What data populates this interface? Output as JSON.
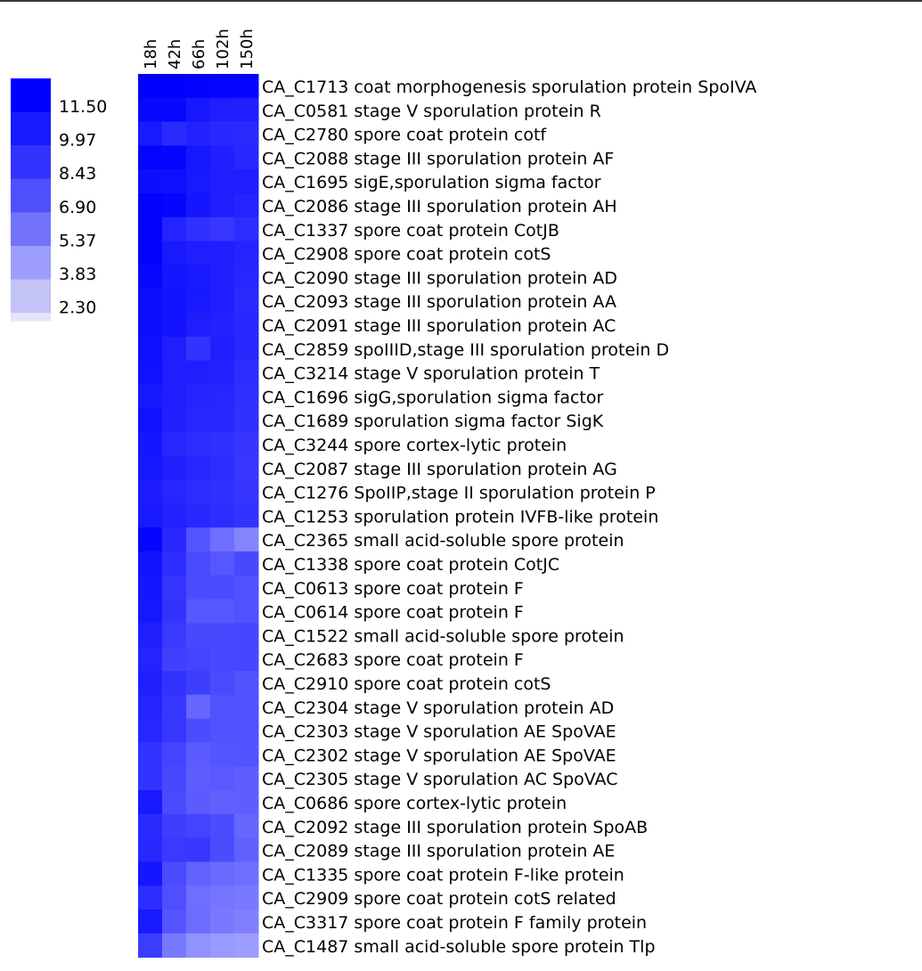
{
  "chart_data": {
    "type": "heatmap",
    "title": "",
    "columns": [
      "18h",
      "42h",
      "66h",
      "102h",
      "150h"
    ],
    "rows": [
      "CA_C1713 coat morphogenesis sporulation protein SpoIVA",
      "CA_C0581 stage V sporulation protein R",
      "CA_C2780 spore coat protein cotf",
      "CA_C2088 stage III sporulation protein AF",
      "CA_C1695 sigE,sporulation sigma factor",
      "CA_C2086 stage III sporulation protein AH",
      "CA_C1337 spore coat protein CotJB",
      "CA_C2908 spore coat protein cotS",
      "CA_C2090 stage III sporulation protein AD",
      "CA_C2093 stage III sporulation protein AA",
      "CA_C2091 stage III sporulation protein AC",
      "CA_C2859 spoIIID,stage III sporulation protein D",
      "CA_C3214 stage V sporulation protein T",
      "CA_C1696 sigG,sporulation sigma factor",
      "CA_C1689 sporulation sigma factor SigK",
      "CA_C3244 spore cortex-lytic protein",
      "CA_C2087 stage III sporulation protein AG",
      "CA_C1276 SpoIIP,stage II sporulation protein P",
      "CA_C1253 sporulation protein IVFB-like protein",
      "CA_C2365 small acid-soluble spore protein",
      "CA_C1338 spore coat protein CotJC",
      "CA_C0613 spore coat protein F",
      "CA_C0614 spore coat protein F",
      "CA_C1522 small acid-soluble spore protein",
      "CA_C2683 spore coat protein F",
      "CA_C2910 spore coat protein cotS",
      "CA_C2304 stage V sporulation protein AD",
      "CA_C2303 stage V sporulation AE SpoVAE",
      "CA_C2302 stage V sporulation AE SpoVAE",
      "CA_C2305 stage V sporulation AC SpoVAC",
      "CA_C0686 spore cortex-lytic protein",
      "CA_C2092 stage III sporulation protein SpoAB",
      "CA_C2089 stage III sporulation protein AE",
      "CA_C1335 spore coat protein F-like protein",
      "CA_C2909 spore coat protein cotS related",
      "CA_C3317 spore coat protein F family protein",
      "CA_C1487 small acid-soluble spore protein Tlp"
    ],
    "values": [
      [
        12.0,
        12.0,
        11.9,
        11.8,
        11.8
      ],
      [
        11.6,
        11.6,
        10.9,
        10.6,
        10.5
      ],
      [
        10.8,
        10.0,
        10.4,
        10.1,
        10.0
      ],
      [
        11.8,
        11.7,
        10.9,
        10.5,
        10.1
      ],
      [
        11.4,
        11.3,
        10.8,
        10.6,
        10.6
      ],
      [
        11.9,
        11.7,
        11.0,
        10.6,
        10.3
      ],
      [
        11.9,
        10.3,
        9.7,
        9.4,
        9.9
      ],
      [
        11.9,
        10.8,
        10.6,
        10.6,
        10.3
      ],
      [
        11.6,
        11.0,
        10.8,
        10.5,
        10.2
      ],
      [
        11.4,
        11.1,
        10.8,
        10.6,
        10.0
      ],
      [
        11.4,
        11.1,
        10.6,
        10.4,
        10.1
      ],
      [
        11.3,
        10.6,
        9.6,
        10.5,
        10.1
      ],
      [
        11.2,
        10.6,
        10.5,
        10.4,
        9.9
      ],
      [
        10.9,
        10.6,
        10.3,
        10.2,
        9.8
      ],
      [
        11.2,
        10.5,
        10.2,
        10.1,
        9.7
      ],
      [
        11.0,
        10.2,
        9.9,
        9.7,
        9.5
      ],
      [
        10.9,
        10.5,
        10.2,
        9.9,
        9.4
      ],
      [
        10.7,
        10.2,
        9.9,
        9.7,
        9.5
      ],
      [
        10.8,
        10.4,
        10.1,
        9.9,
        9.6
      ],
      [
        11.7,
        10.1,
        8.0,
        6.8,
        5.8
      ],
      [
        11.1,
        9.9,
        8.5,
        7.9,
        8.6
      ],
      [
        11.0,
        9.5,
        8.4,
        8.5,
        8.2
      ],
      [
        10.9,
        9.6,
        7.9,
        7.9,
        8.2
      ],
      [
        10.5,
        9.3,
        8.6,
        8.6,
        8.7
      ],
      [
        10.3,
        9.0,
        8.8,
        8.6,
        8.7
      ],
      [
        10.5,
        9.6,
        9.1,
        8.5,
        8.1
      ],
      [
        10.3,
        9.4,
        7.2,
        8.2,
        8.2
      ],
      [
        10.2,
        9.4,
        8.4,
        8.2,
        8.2
      ],
      [
        9.6,
        8.8,
        7.7,
        8.0,
        8.1
      ],
      [
        9.6,
        8.6,
        7.6,
        7.8,
        7.6
      ],
      [
        10.8,
        8.5,
        7.7,
        7.5,
        7.6
      ],
      [
        10.0,
        9.1,
        8.8,
        8.4,
        7.2
      ],
      [
        10.1,
        9.3,
        9.4,
        8.4,
        7.5
      ],
      [
        11.0,
        8.5,
        7.4,
        7.0,
        6.8
      ],
      [
        9.9,
        8.3,
        6.8,
        6.5,
        6.3
      ],
      [
        10.8,
        8.0,
        6.9,
        6.3,
        6.0
      ],
      [
        9.2,
        6.3,
        5.2,
        4.8,
        4.6
      ]
    ],
    "legend": {
      "placement": "left",
      "labels": [
        "11.50",
        "9.97",
        "8.43",
        "6.90",
        "5.37",
        "3.83",
        "2.30"
      ],
      "colors": [
        "#0000ff",
        "#1a1aff",
        "#3333ff",
        "#4f4ffb",
        "#7373fb",
        "#9d9dfb",
        "#c3c3f8",
        "#e4e4fb"
      ]
    }
  }
}
